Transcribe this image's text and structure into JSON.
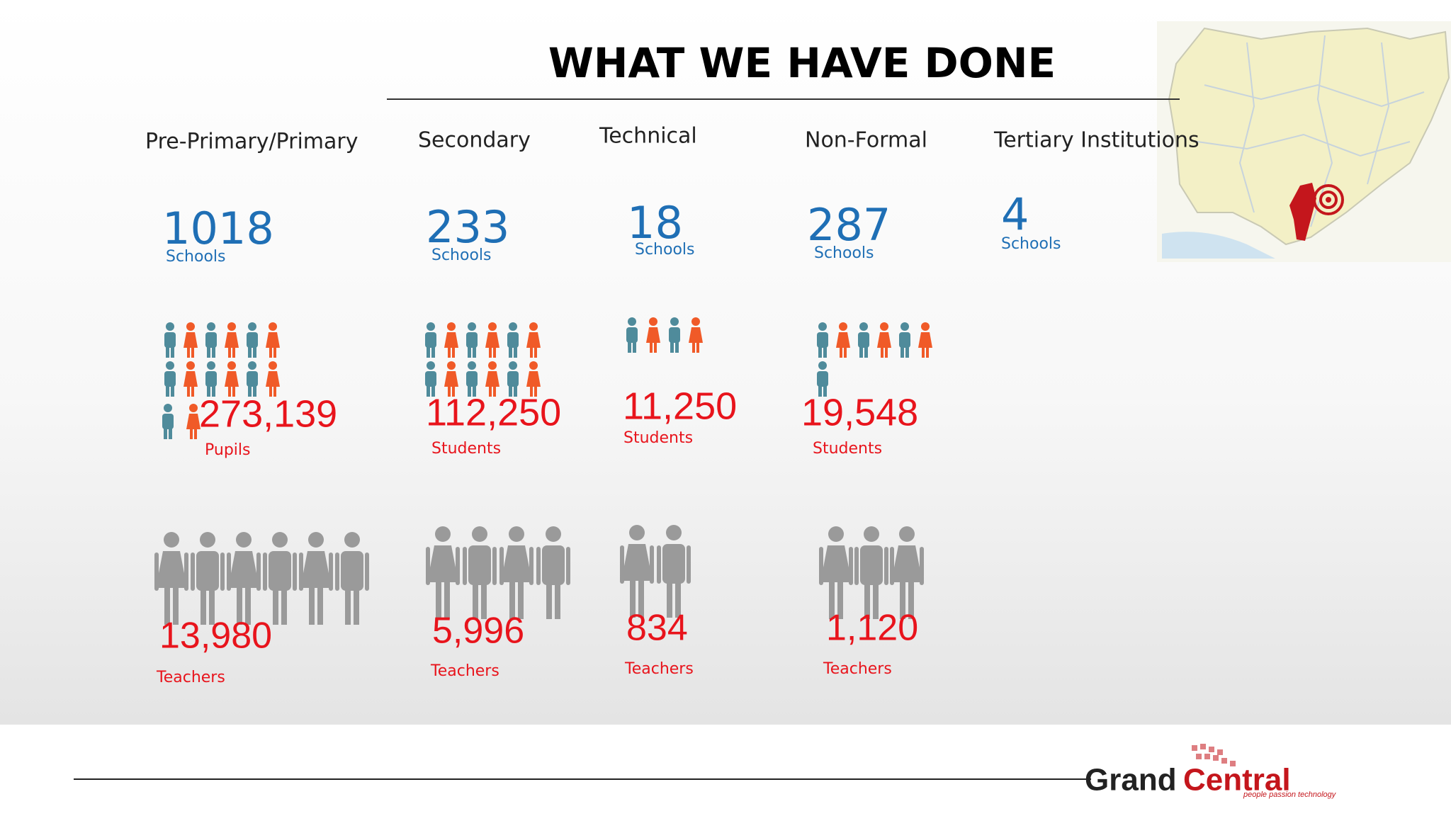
{
  "header": {
    "title": "WHAT WE HAVE DONE"
  },
  "columns": [
    {
      "heading": "Pre-Primary/Primary",
      "schools": "1018",
      "schools_label": "Schools",
      "students": "273,139",
      "students_label": "Pupils",
      "teachers": "13,980",
      "teachers_label": "Teachers"
    },
    {
      "heading": "Secondary",
      "schools": "233",
      "schools_label": "Schools",
      "students": "112,250",
      "students_label": "Students",
      "teachers": "5,996",
      "teachers_label": "Teachers"
    },
    {
      "heading": "Technical",
      "schools": "18",
      "schools_label": "Schools",
      "students": "11,250",
      "students_label": "Students",
      "teachers": "834",
      "teachers_label": "Teachers"
    },
    {
      "heading": "Non-Formal",
      "schools": "287",
      "schools_label": "Schools",
      "students": "19,548",
      "students_label": "Students",
      "teachers": "1,120",
      "teachers_label": "Teachers"
    },
    {
      "heading": "Tertiary Institutions",
      "schools": "4",
      "schools_label": "Schools"
    }
  ],
  "logo": {
    "name_part1": "Grand",
    "name_part2": "Central",
    "tagline": "people passion technology"
  }
}
